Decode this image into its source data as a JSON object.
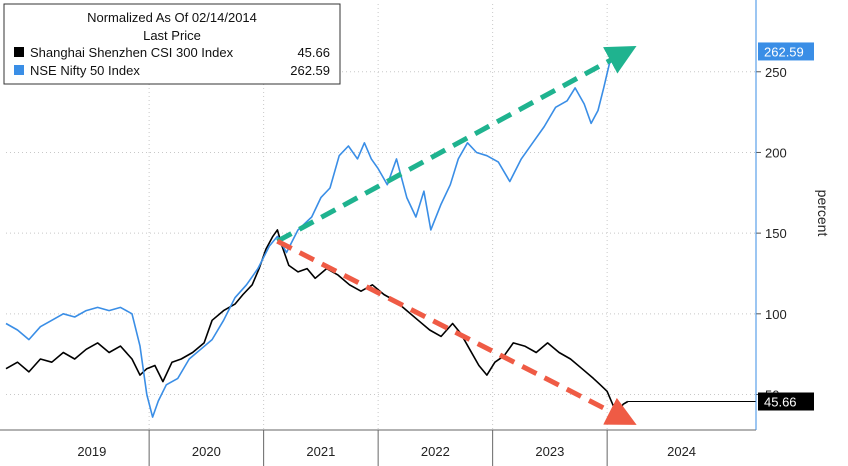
{
  "chart_data": {
    "type": "line",
    "title": "",
    "xlabel": "",
    "ylabel": "percent",
    "ylim": [
      28,
      292
    ],
    "xlim": [
      2018.75,
      2025.3
    ],
    "y_ticks": [
      50,
      100,
      150,
      200,
      250
    ],
    "x_ticks": [
      {
        "label": "2019",
        "year": 2019
      },
      {
        "label": "2020",
        "year": 2020
      },
      {
        "label": "2021",
        "year": 2021
      },
      {
        "label": "2022",
        "year": 2022
      },
      {
        "label": "2023",
        "year": 2023
      },
      {
        "label": "2024",
        "year": 2024
      }
    ],
    "grid": true,
    "legend": {
      "position": "top-left",
      "header_line1": "Normalized As Of 02/14/2014",
      "header_line2": "Last Price",
      "entries": [
        {
          "name": "Shanghai Shenzhen CSI 300 Index",
          "value": "45.66",
          "color": "#000000"
        },
        {
          "name": "NSE Nifty 50 Index",
          "value": "262.59",
          "color": "#3a8ee6"
        }
      ]
    },
    "series": [
      {
        "name": "Shanghai Shenzhen CSI 300 Index",
        "color": "#000000",
        "last_label": "45.66",
        "points": [
          [
            2018.75,
            66
          ],
          [
            2018.85,
            70
          ],
          [
            2018.95,
            64
          ],
          [
            2019.05,
            72
          ],
          [
            2019.15,
            70
          ],
          [
            2019.25,
            76
          ],
          [
            2019.35,
            72
          ],
          [
            2019.45,
            78
          ],
          [
            2019.55,
            82
          ],
          [
            2019.65,
            76
          ],
          [
            2019.75,
            80
          ],
          [
            2019.85,
            72
          ],
          [
            2019.92,
            62
          ],
          [
            2019.98,
            66
          ],
          [
            2020.05,
            68
          ],
          [
            2020.12,
            58
          ],
          [
            2020.2,
            70
          ],
          [
            2020.28,
            72
          ],
          [
            2020.38,
            76
          ],
          [
            2020.48,
            82
          ],
          [
            2020.55,
            96
          ],
          [
            2020.65,
            102
          ],
          [
            2020.75,
            106
          ],
          [
            2020.82,
            112
          ],
          [
            2020.9,
            118
          ],
          [
            2020.96,
            128
          ],
          [
            2021.02,
            140
          ],
          [
            2021.08,
            148
          ],
          [
            2021.12,
            152
          ],
          [
            2021.16,
            142
          ],
          [
            2021.22,
            130
          ],
          [
            2021.3,
            126
          ],
          [
            2021.38,
            128
          ],
          [
            2021.45,
            122
          ],
          [
            2021.55,
            128
          ],
          [
            2021.65,
            124
          ],
          [
            2021.75,
            118
          ],
          [
            2021.85,
            114
          ],
          [
            2021.95,
            118
          ],
          [
            2022.05,
            112
          ],
          [
            2022.15,
            108
          ],
          [
            2022.25,
            102
          ],
          [
            2022.35,
            96
          ],
          [
            2022.45,
            90
          ],
          [
            2022.55,
            86
          ],
          [
            2022.65,
            94
          ],
          [
            2022.72,
            88
          ],
          [
            2022.8,
            78
          ],
          [
            2022.88,
            68
          ],
          [
            2022.95,
            62
          ],
          [
            2023.02,
            70
          ],
          [
            2023.1,
            74
          ],
          [
            2023.18,
            82
          ],
          [
            2023.28,
            80
          ],
          [
            2023.38,
            76
          ],
          [
            2023.48,
            82
          ],
          [
            2023.58,
            76
          ],
          [
            2023.68,
            72
          ],
          [
            2023.78,
            66
          ],
          [
            2023.88,
            60
          ],
          [
            2023.94,
            56
          ],
          [
            2024.0,
            52
          ],
          [
            2024.06,
            42
          ],
          [
            2024.1,
            40
          ],
          [
            2024.14,
            44
          ],
          [
            2024.18,
            45.66
          ]
        ]
      },
      {
        "name": "NSE Nifty 50 Index",
        "color": "#3a8ee6",
        "last_label": "262.59",
        "points": [
          [
            2018.75,
            94
          ],
          [
            2018.85,
            90
          ],
          [
            2018.95,
            84
          ],
          [
            2019.05,
            92
          ],
          [
            2019.15,
            96
          ],
          [
            2019.25,
            100
          ],
          [
            2019.35,
            98
          ],
          [
            2019.45,
            102
          ],
          [
            2019.55,
            104
          ],
          [
            2019.65,
            102
          ],
          [
            2019.75,
            104
          ],
          [
            2019.85,
            100
          ],
          [
            2019.92,
            80
          ],
          [
            2019.98,
            50
          ],
          [
            2020.03,
            36
          ],
          [
            2020.08,
            46
          ],
          [
            2020.15,
            56
          ],
          [
            2020.25,
            60
          ],
          [
            2020.35,
            72
          ],
          [
            2020.45,
            78
          ],
          [
            2020.55,
            84
          ],
          [
            2020.65,
            96
          ],
          [
            2020.75,
            110
          ],
          [
            2020.85,
            118
          ],
          [
            2020.95,
            128
          ],
          [
            2021.05,
            142
          ],
          [
            2021.12,
            148
          ],
          [
            2021.2,
            138
          ],
          [
            2021.3,
            152
          ],
          [
            2021.42,
            160
          ],
          [
            2021.5,
            172
          ],
          [
            2021.58,
            178
          ],
          [
            2021.66,
            198
          ],
          [
            2021.74,
            204
          ],
          [
            2021.82,
            196
          ],
          [
            2021.88,
            206
          ],
          [
            2021.94,
            196
          ],
          [
            2022.0,
            190
          ],
          [
            2022.08,
            180
          ],
          [
            2022.16,
            196
          ],
          [
            2022.25,
            172
          ],
          [
            2022.33,
            160
          ],
          [
            2022.4,
            176
          ],
          [
            2022.46,
            152
          ],
          [
            2022.55,
            168
          ],
          [
            2022.63,
            180
          ],
          [
            2022.7,
            196
          ],
          [
            2022.78,
            206
          ],
          [
            2022.86,
            200
          ],
          [
            2022.95,
            198
          ],
          [
            2023.05,
            194
          ],
          [
            2023.15,
            182
          ],
          [
            2023.25,
            196
          ],
          [
            2023.35,
            206
          ],
          [
            2023.45,
            216
          ],
          [
            2023.55,
            228
          ],
          [
            2023.65,
            232
          ],
          [
            2023.72,
            240
          ],
          [
            2023.8,
            230
          ],
          [
            2023.86,
            218
          ],
          [
            2023.92,
            226
          ],
          [
            2023.97,
            240
          ],
          [
            2024.02,
            255
          ],
          [
            2024.07,
            260
          ],
          [
            2024.12,
            255
          ],
          [
            2024.18,
            262.59
          ]
        ]
      }
    ],
    "annotations": [
      {
        "type": "arrow",
        "style": "dashed",
        "color": "#1fb38f",
        "from": [
          2021.12,
          145
        ],
        "to": [
          2024.18,
          263
        ]
      },
      {
        "type": "arrow",
        "style": "dashed",
        "color": "#ef5b45",
        "from": [
          2021.12,
          145
        ],
        "to": [
          2024.18,
          34
        ]
      }
    ]
  }
}
